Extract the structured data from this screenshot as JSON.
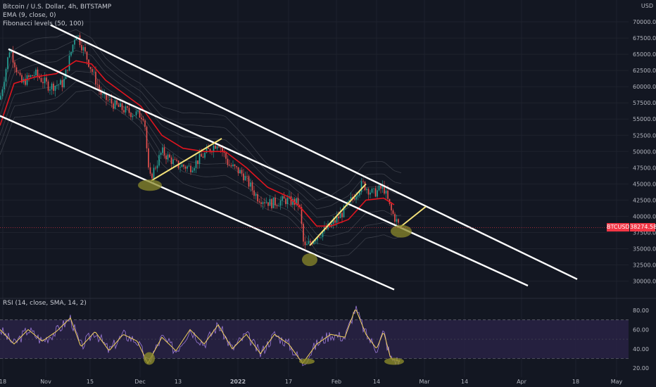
{
  "legend": {
    "symbol": "Bitcoin / U.S. Dollar, 4h, BITSTAMP",
    "ema": "EMA (9, close, 0)",
    "fib": "Fibonacci levels (50, 100)",
    "rsi": "RSI (14, close, SMA, 14, 2)"
  },
  "currency": "USD",
  "price_badge": {
    "symbol": "BTCUSD",
    "value": "38274.58",
    "color": "#f23645"
  },
  "colors": {
    "background": "#131722",
    "candle_up": "#26a69a",
    "candle_down": "#ef5350",
    "ema": "#e0151f",
    "channel": "#ffffff",
    "trendline_yellow": "#f5e27a",
    "highlight": "#8b8a2b",
    "rsi_line": "#9c7ad9",
    "rsi_ma": "#f4d35e",
    "rsi_band": "#2a2347"
  },
  "chart_data": [
    {
      "type": "candlestick",
      "title": "Bitcoin / U.S. Dollar, 4h, BITSTAMP",
      "x_ticks": [
        "18",
        "Nov",
        "15",
        "Dec",
        "13",
        "2022",
        "17",
        "Feb",
        "14",
        "Mar",
        "14",
        "Apr",
        "18",
        "May"
      ],
      "y_ticks": [
        "70000.00",
        "67500.00",
        "65000.00",
        "62500.00",
        "60000.00",
        "57500.00",
        "55000.00",
        "52500.00",
        "50000.00",
        "47500.00",
        "45000.00",
        "42500.00",
        "40000.00",
        "37500.00",
        "35000.00",
        "32500.00",
        "30000.00"
      ],
      "ylim": [
        28000,
        72500
      ],
      "last_price": 38274.58,
      "price_path": [
        [
          0,
          58000
        ],
        [
          14,
          66000
        ],
        [
          30,
          60500
        ],
        [
          50,
          62000
        ],
        [
          70,
          60000
        ],
        [
          90,
          60500
        ],
        [
          108,
          68500
        ],
        [
          125,
          64000
        ],
        [
          145,
          58500
        ],
        [
          165,
          57000
        ],
        [
          185,
          56000
        ],
        [
          205,
          55500
        ],
        [
          212,
          45500
        ],
        [
          230,
          50000
        ],
        [
          250,
          48000
        ],
        [
          270,
          47500
        ],
        [
          290,
          49500
        ],
        [
          310,
          51500
        ],
        [
          325,
          48000
        ],
        [
          345,
          46500
        ],
        [
          365,
          43000
        ],
        [
          385,
          42000
        ],
        [
          405,
          42500
        ],
        [
          425,
          42000
        ],
        [
          432,
          35000
        ],
        [
          450,
          37000
        ],
        [
          470,
          38500
        ],
        [
          490,
          41000
        ],
        [
          505,
          43500
        ],
        [
          515,
          45000
        ],
        [
          530,
          43500
        ],
        [
          545,
          44500
        ],
        [
          555,
          41000
        ],
        [
          568,
          38300
        ]
      ],
      "ema_path": [
        [
          0,
          54000
        ],
        [
          20,
          60500
        ],
        [
          50,
          61500
        ],
        [
          80,
          62000
        ],
        [
          108,
          64000
        ],
        [
          130,
          63500
        ],
        [
          150,
          61000
        ],
        [
          175,
          59000
        ],
        [
          200,
          57000
        ],
        [
          230,
          52500
        ],
        [
          260,
          50500
        ],
        [
          290,
          50000
        ],
        [
          320,
          50000
        ],
        [
          350,
          47500
        ],
        [
          380,
          44500
        ],
        [
          410,
          43000
        ],
        [
          430,
          41000
        ],
        [
          450,
          38500
        ],
        [
          470,
          38500
        ],
        [
          495,
          39500
        ],
        [
          520,
          42500
        ],
        [
          545,
          42800
        ],
        [
          560,
          41800
        ]
      ],
      "fib_envelope_offsets": [
        1500,
        3000,
        4500
      ],
      "channel_lines": [
        {
          "from": [
            72,
            69500
          ],
          "to": [
            820,
            30300
          ]
        },
        {
          "from": [
            12,
            65800
          ],
          "to": [
            750,
            29300
          ]
        },
        {
          "from": [
            0,
            55500
          ],
          "to": [
            560,
            28700
          ]
        }
      ],
      "yellow_lines": [
        {
          "from": [
            215,
            45500
          ],
          "to": [
            315,
            52000
          ]
        },
        {
          "from": [
            440,
            35500
          ],
          "to": [
            520,
            45000
          ]
        },
        {
          "from": [
            568,
            38300
          ],
          "to": [
            605,
            41500
          ]
        }
      ],
      "highlights": [
        {
          "x": 213,
          "y": 44800,
          "rx": 17,
          "ry": 8
        },
        {
          "x": 440,
          "y": 33300,
          "rx": 11,
          "ry": 9
        },
        {
          "x": 570,
          "y": 37700,
          "rx": 15,
          "ry": 9
        }
      ]
    },
    {
      "type": "line",
      "title": "RSI (14, close, SMA, 14, 2)",
      "y_ticks": [
        "80.00",
        "60.00",
        "40.00",
        "20.00"
      ],
      "ylim": [
        15,
        88
      ],
      "bands": [
        30,
        70
      ],
      "rsi_path": [
        [
          0,
          60
        ],
        [
          20,
          45
        ],
        [
          40,
          60
        ],
        [
          60,
          48
        ],
        [
          80,
          58
        ],
        [
          100,
          72
        ],
        [
          115,
          42
        ],
        [
          135,
          58
        ],
        [
          155,
          38
        ],
        [
          175,
          55
        ],
        [
          195,
          48
        ],
        [
          210,
          25
        ],
        [
          230,
          52
        ],
        [
          250,
          38
        ],
        [
          270,
          60
        ],
        [
          290,
          45
        ],
        [
          310,
          65
        ],
        [
          330,
          40
        ],
        [
          350,
          55
        ],
        [
          370,
          35
        ],
        [
          390,
          55
        ],
        [
          410,
          45
        ],
        [
          430,
          25
        ],
        [
          450,
          45
        ],
        [
          470,
          55
        ],
        [
          490,
          52
        ],
        [
          505,
          82
        ],
        [
          520,
          55
        ],
        [
          535,
          40
        ],
        [
          545,
          58
        ],
        [
          555,
          30
        ],
        [
          568,
          27
        ]
      ],
      "highlights": [
        {
          "x": 212,
          "y": 30,
          "rx": 8,
          "ry": 9
        },
        {
          "x": 436,
          "y": 27,
          "rx": 11,
          "ry": 4
        },
        {
          "x": 560,
          "y": 27,
          "rx": 14,
          "ry": 5
        }
      ]
    }
  ]
}
